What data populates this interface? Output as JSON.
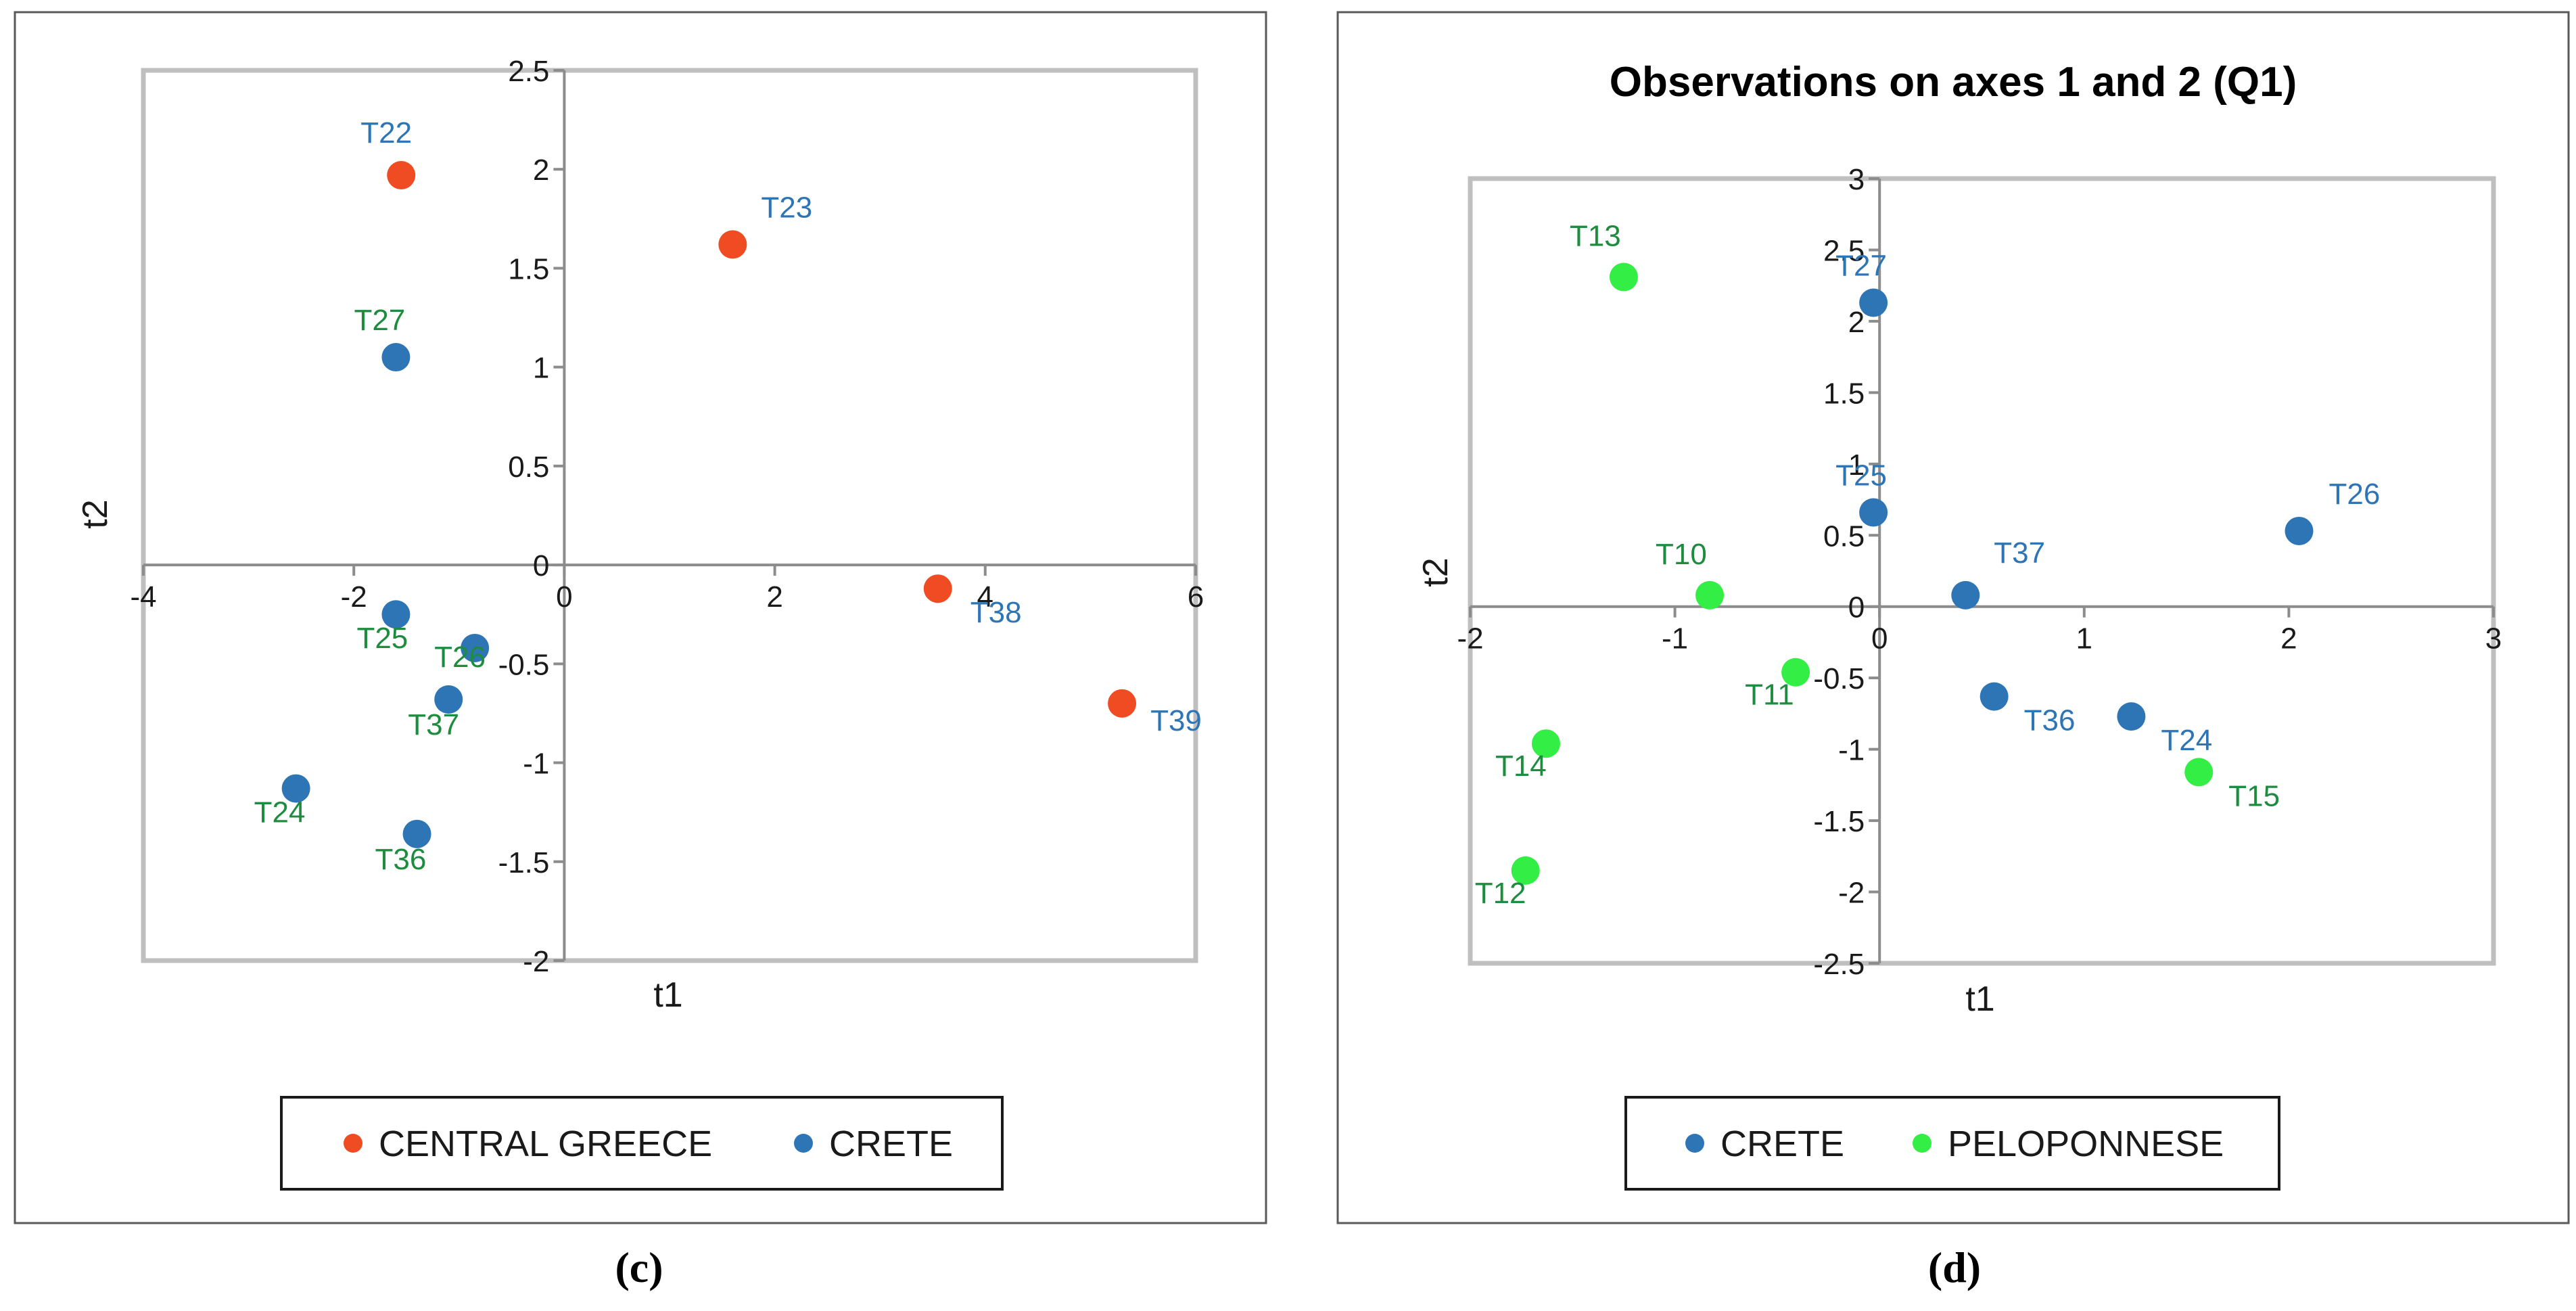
{
  "chart_data": [
    {
      "type": "scatter",
      "panel_label": "(c)",
      "title": "",
      "xlabel": "t1",
      "ylabel": "t2",
      "xlim": [
        -4,
        6
      ],
      "ylim": [
        -2,
        2.5
      ],
      "x_ticks": [
        -4,
        -2,
        0,
        2,
        4,
        6
      ],
      "y_ticks": [
        -2,
        -1.5,
        -1,
        -0.5,
        0,
        0.5,
        1,
        1.5,
        2,
        2.5
      ],
      "x_tick_labels": [
        "-4",
        "-2",
        "0",
        "2",
        "4",
        "6"
      ],
      "y_tick_labels": [
        "-2",
        "-1.5",
        "-1",
        "-0.5",
        "0",
        "0.5",
        "1",
        "1.5",
        "2",
        "2.5"
      ],
      "legend_position": "bottom",
      "series": [
        {
          "name": "CENTRAL GREECE",
          "color": "#f04c23",
          "label_color": "#2e75b6",
          "points": [
            {
              "label": "T22",
              "x": -1.55,
              "y": 1.97
            },
            {
              "label": "T23",
              "x": 1.6,
              "y": 1.62
            },
            {
              "label": "T38",
              "x": 3.55,
              "y": -0.12
            },
            {
              "label": "T39",
              "x": 5.3,
              "y": -0.7
            }
          ]
        },
        {
          "name": "CRETE",
          "color": "#2e75b6",
          "label_color": "#1e8c3e",
          "points": [
            {
              "label": "T27",
              "x": -1.6,
              "y": 1.05
            },
            {
              "label": "T25",
              "x": -1.6,
              "y": -0.25
            },
            {
              "label": "T26",
              "x": -0.85,
              "y": -0.42
            },
            {
              "label": "T37",
              "x": -1.1,
              "y": -0.68
            },
            {
              "label": "T24",
              "x": -2.55,
              "y": -1.13
            },
            {
              "label": "T36",
              "x": -1.4,
              "y": -1.36
            }
          ]
        }
      ]
    },
    {
      "type": "scatter",
      "panel_label": "(d)",
      "title": "Observations on axes 1 and 2 (Q1)",
      "xlabel": "t1",
      "ylabel": "t2",
      "xlim": [
        -2,
        3
      ],
      "ylim": [
        -2.5,
        3
      ],
      "x_ticks": [
        -2,
        -1,
        0,
        1,
        2,
        3
      ],
      "y_ticks": [
        -2.5,
        -2,
        -1.5,
        -1,
        -0.5,
        0,
        0.5,
        1,
        1.5,
        2,
        2.5,
        3
      ],
      "x_tick_labels": [
        "-2",
        "-1",
        "0",
        "1",
        "2",
        "3"
      ],
      "y_tick_labels": [
        "-2.5",
        "-2",
        "-1.5",
        "-1",
        "-0.5",
        "0",
        "0.5",
        "1",
        "1.5",
        "2",
        "2.5",
        "3"
      ],
      "legend_position": "bottom",
      "series": [
        {
          "name": "CRETE",
          "color": "#2e75b6",
          "label_color": "#2e75b6",
          "points": [
            {
              "label": "T27",
              "x": -0.03,
              "y": 2.13
            },
            {
              "label": "T25",
              "x": -0.03,
              "y": 0.66
            },
            {
              "label": "T37",
              "x": 0.42,
              "y": 0.08
            },
            {
              "label": "T26",
              "x": 2.05,
              "y": 0.53
            },
            {
              "label": "T36",
              "x": 0.56,
              "y": -0.63
            },
            {
              "label": "T24",
              "x": 1.23,
              "y": -0.77
            }
          ]
        },
        {
          "name": "PELOPONNESE",
          "color": "#33ee44",
          "label_color": "#1e8c3e",
          "points": [
            {
              "label": "T13",
              "x": -1.25,
              "y": 2.31
            },
            {
              "label": "T10",
              "x": -0.83,
              "y": 0.08
            },
            {
              "label": "T11",
              "x": -0.41,
              "y": -0.46
            },
            {
              "label": "T14",
              "x": -1.63,
              "y": -0.96
            },
            {
              "label": "T12",
              "x": -1.73,
              "y": -1.85
            },
            {
              "label": "T15",
              "x": 1.56,
              "y": -1.16
            }
          ]
        }
      ]
    }
  ]
}
